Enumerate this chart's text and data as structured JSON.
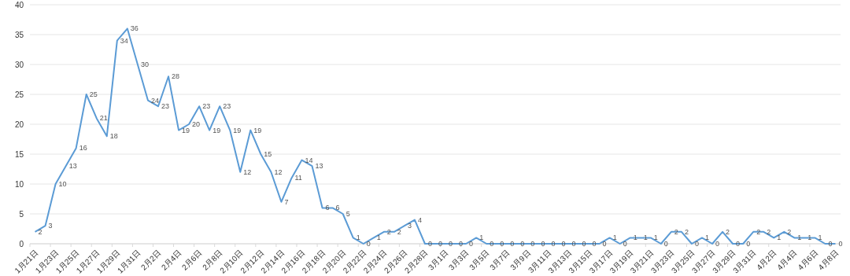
{
  "chart_data": {
    "type": "line",
    "categories": [
      "1月21日",
      null,
      "1月23日",
      null,
      "1月25日",
      null,
      "1月27日",
      null,
      "1月29日",
      null,
      "1月31日",
      null,
      "2月2日",
      null,
      "2月4日",
      null,
      "2月6日",
      null,
      "2月8日",
      null,
      "2月10日",
      null,
      "2月12日",
      null,
      "2月14日",
      null,
      "2月16日",
      null,
      "2月18日",
      null,
      "2月20日",
      null,
      "2月22日",
      null,
      "2月24日",
      null,
      "2月26日",
      null,
      "2月28日",
      null,
      "3月1日",
      null,
      "3月3日",
      null,
      "3月5日",
      null,
      "3月7日",
      null,
      "3月9日",
      null,
      "3月11日",
      null,
      "3月13日",
      null,
      "3月15日",
      null,
      "3月17日",
      null,
      "3月19日",
      null,
      "3月21日",
      null,
      "3月23日",
      null,
      "3月25日",
      null,
      "3月27日",
      null,
      "3月29日",
      null,
      "3月31日",
      null,
      "4月2日",
      null,
      "4月4日",
      null,
      "4月6日",
      null,
      "4月8日"
    ],
    "series": [
      {
        "color": "#5b9bd5",
        "values": [
          2,
          3,
          10,
          13,
          16,
          25,
          21,
          18,
          34,
          36,
          30,
          24,
          23,
          28,
          19,
          20,
          23,
          19,
          23,
          19,
          12,
          19,
          15,
          12,
          7,
          11,
          14,
          13,
          6,
          6,
          5,
          1,
          0,
          1,
          2,
          2,
          3,
          4,
          0,
          0,
          0,
          0,
          0,
          1,
          0,
          0,
          0,
          0,
          0,
          0,
          0,
          0,
          0,
          0,
          0,
          0,
          1,
          0,
          1,
          1,
          1,
          0,
          2,
          2,
          0,
          1,
          0,
          2,
          0,
          0,
          2,
          2,
          1,
          2,
          1,
          1,
          1,
          0,
          0
        ]
      }
    ],
    "ylim": [
      0,
      40
    ],
    "yticks": [
      0,
      5,
      10,
      15,
      20,
      25,
      30,
      35,
      40
    ],
    "grid": "y",
    "data_labels": true,
    "marker": "none",
    "line_style": "solid"
  }
}
